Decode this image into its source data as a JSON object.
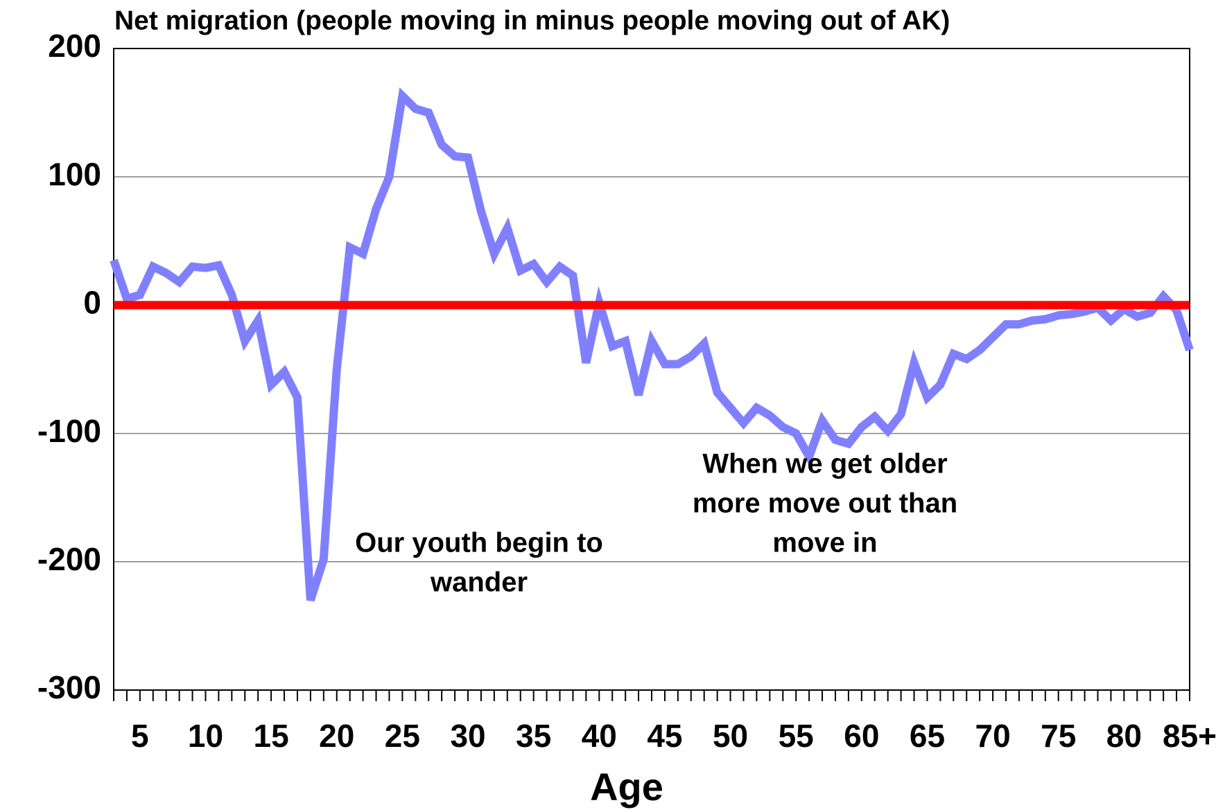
{
  "chart_data": {
    "type": "line",
    "title": "Net migration (people moving in minus people moving out of AK)",
    "xlabel": "Age",
    "categories": [
      null,
      null,
      "5",
      null,
      null,
      null,
      null,
      "10",
      null,
      null,
      null,
      null,
      "15",
      null,
      null,
      null,
      null,
      "20",
      null,
      null,
      null,
      null,
      "25",
      null,
      null,
      null,
      null,
      "30",
      null,
      null,
      null,
      null,
      "35",
      null,
      null,
      null,
      null,
      "40",
      null,
      null,
      null,
      null,
      "45",
      null,
      null,
      null,
      null,
      "50",
      null,
      null,
      null,
      null,
      "55",
      null,
      null,
      null,
      null,
      "60",
      null,
      null,
      null,
      null,
      "65",
      null,
      null,
      null,
      null,
      "70",
      null,
      null,
      null,
      null,
      "75",
      null,
      null,
      null,
      null,
      "80",
      null,
      null,
      null,
      null,
      "85+"
    ],
    "series": [
      {
        "color": "#8080ff",
        "values": [
          35,
          5,
          8,
          30,
          25,
          18,
          30,
          29,
          31,
          8,
          -28,
          -12,
          -62,
          -52,
          -72,
          -230,
          -198,
          -50,
          45,
          40,
          75,
          100,
          163,
          153,
          150,
          125,
          116,
          115,
          73,
          40,
          60,
          27,
          32,
          18,
          30,
          23,
          -45,
          2,
          -32,
          -28,
          -70,
          -28,
          -46,
          -46,
          -40,
          -30,
          -68,
          -80,
          -92,
          -80,
          -86,
          -95,
          -100,
          -118,
          -90,
          -105,
          -108,
          -95,
          -87,
          -98,
          -85,
          -45,
          -72,
          -62,
          -38,
          -42,
          -35,
          -25,
          -15,
          -15,
          -12,
          -11,
          -8,
          -7,
          -5,
          -2,
          -12,
          -3,
          -9,
          -6,
          7,
          -4,
          -35
        ]
      }
    ],
    "reference_line": {
      "value": 0,
      "color": "#ff0000"
    },
    "ylim": [
      -300,
      200
    ],
    "yticks": [
      -300,
      -200,
      -100,
      0,
      100,
      200
    ],
    "grid": true,
    "annotations": [
      {
        "lines": [
          "Our youth begin to",
          "wander"
        ]
      },
      {
        "lines": [
          "When we get older",
          "more move out than",
          "move in"
        ]
      }
    ]
  }
}
